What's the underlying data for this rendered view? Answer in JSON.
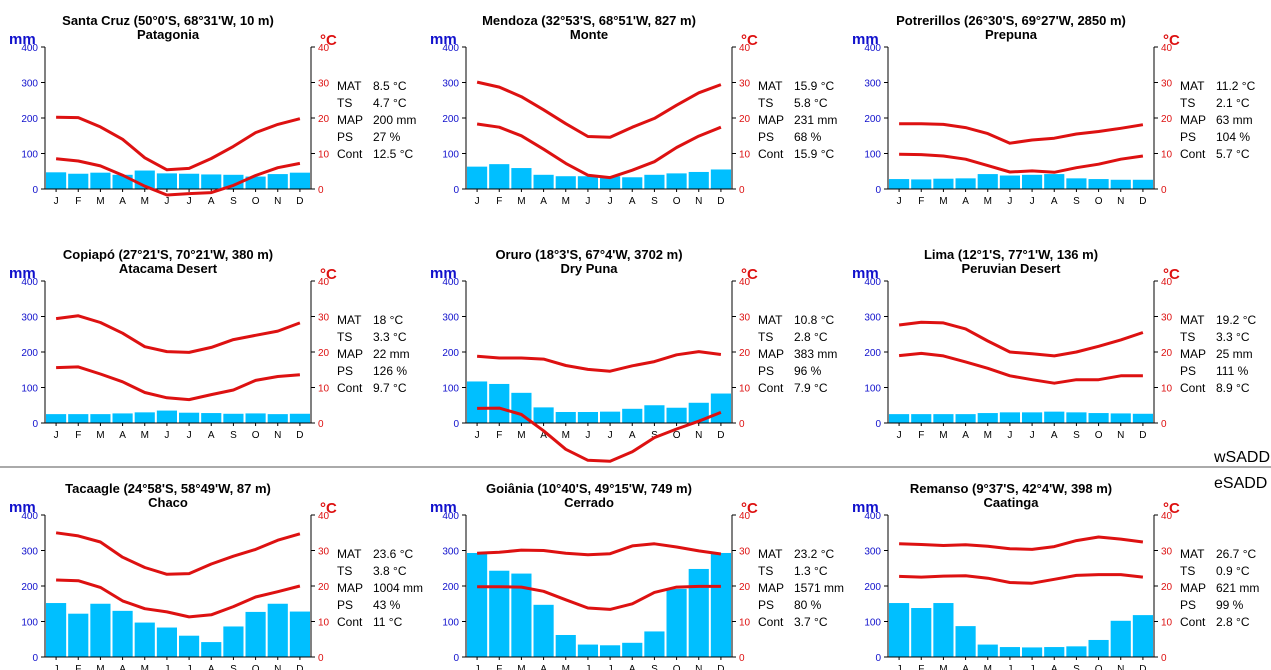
{
  "colors": {
    "bar": "#00bfff",
    "temp": "#dd1111",
    "mm": "#1010cc",
    "degc": "#dd1111",
    "axis": "#000000",
    "divider": "#555555"
  },
  "units": {
    "left": "mm",
    "right": "°C"
  },
  "stat_labels": [
    "MAT",
    "TS",
    "MAP",
    "PS",
    "Cont"
  ],
  "divider_labels": {
    "upper": "wSADD",
    "lower": "eSADD"
  },
  "chart_data": [
    {
      "type": "bar+line",
      "title": "Santa Cruz (50°0'S, 68°31'W, 10 m)",
      "subtitle": "Patagonia",
      "categories": [
        "J",
        "F",
        "M",
        "A",
        "M",
        "J",
        "J",
        "A",
        "S",
        "O",
        "N",
        "D"
      ],
      "y_left_ticks": [
        "0",
        "100",
        "200",
        "300",
        "400"
      ],
      "y_right_ticks": [
        "0",
        "10",
        "20",
        "30",
        "40"
      ],
      "ylim_left": [
        0,
        400
      ],
      "ylim_right": [
        0,
        40
      ],
      "precip_mm": [
        47,
        43,
        46,
        40,
        52,
        44,
        43,
        41,
        40,
        35,
        42,
        46
      ],
      "temp_max_c": [
        20.2,
        20.1,
        17.5,
        14,
        8.8,
        5.4,
        5.8,
        8.6,
        12,
        15.9,
        18.2,
        19.8
      ],
      "temp_min_c": [
        8.5,
        7.9,
        6.5,
        3.9,
        0.8,
        -1.7,
        -1.3,
        -1,
        1,
        3.8,
        6,
        7.2
      ],
      "stats": [
        "8.5 °C",
        "4.7 °C",
        "200 mm",
        "27 %",
        "12.5 °C"
      ]
    },
    {
      "type": "bar+line",
      "title": "Mendoza (32°53'S, 68°51'W, 827 m)",
      "subtitle": "Monte",
      "categories": [
        "J",
        "F",
        "M",
        "A",
        "M",
        "J",
        "J",
        "A",
        "S",
        "O",
        "N",
        "D"
      ],
      "y_left_ticks": [
        "0",
        "100",
        "200",
        "300",
        "400"
      ],
      "y_right_ticks": [
        "0",
        "10",
        "20",
        "30",
        "40"
      ],
      "ylim_left": [
        0,
        400
      ],
      "ylim_right": [
        0,
        40
      ],
      "precip_mm": [
        63,
        70,
        59,
        40,
        36,
        36,
        36,
        33,
        40,
        44,
        48,
        55
      ],
      "temp_max_c": [
        30.1,
        28.7,
        26,
        22.3,
        18.4,
        14.8,
        14.6,
        17.4,
        19.9,
        23.6,
        27.1,
        29.4
      ],
      "temp_min_c": [
        18.3,
        17.4,
        15,
        11.2,
        7.2,
        3.9,
        3.2,
        5.3,
        7.7,
        11.7,
        14.9,
        17.4
      ],
      "stats": [
        "15.9 °C",
        "5.8 °C",
        "231 mm",
        "68 %",
        "15.9 °C"
      ]
    },
    {
      "type": "bar+line",
      "title": "Potrerillos (26°30'S, 69°27'W, 2850 m)",
      "subtitle": "Prepuna",
      "categories": [
        "J",
        "F",
        "M",
        "A",
        "M",
        "J",
        "J",
        "A",
        "S",
        "O",
        "N",
        "D"
      ],
      "y_left_ticks": [
        "0",
        "100",
        "200",
        "300",
        "400"
      ],
      "y_right_ticks": [
        "0",
        "10",
        "20",
        "30",
        "40"
      ],
      "ylim_left": [
        0,
        400
      ],
      "ylim_right": [
        0,
        40
      ],
      "precip_mm": [
        28,
        27,
        29,
        30,
        42,
        38,
        40,
        42,
        30,
        28,
        26,
        26
      ],
      "temp_max_c": [
        18.4,
        18.4,
        18.2,
        17.3,
        15.6,
        12.9,
        13.8,
        14.3,
        15.5,
        16.2,
        17.1,
        18.1
      ],
      "temp_min_c": [
        9.8,
        9.7,
        9.3,
        8.4,
        6.6,
        4.8,
        5.1,
        4.7,
        6,
        7,
        8.4,
        9.3
      ],
      "stats": [
        "11.2 °C",
        "2.1 °C",
        "63 mm",
        "104 %",
        "5.7 °C"
      ]
    },
    {
      "type": "bar+line",
      "title": "Copiapó (27°21'S, 70°21'W, 380 m)",
      "subtitle": "Atacama Desert",
      "categories": [
        "J",
        "F",
        "M",
        "A",
        "M",
        "J",
        "J",
        "A",
        "S",
        "O",
        "N",
        "D"
      ],
      "y_left_ticks": [
        "0",
        "100",
        "200",
        "300",
        "400"
      ],
      "y_right_ticks": [
        "0",
        "10",
        "20",
        "30",
        "40"
      ],
      "ylim_left": [
        0,
        400
      ],
      "ylim_right": [
        0,
        40
      ],
      "precip_mm": [
        25,
        25,
        25,
        27,
        30,
        35,
        29,
        28,
        26,
        27,
        25,
        26
      ],
      "temp_max_c": [
        29.4,
        30.2,
        28.3,
        25.3,
        21.5,
        20.1,
        19.9,
        21.3,
        23.5,
        24.7,
        25.9,
        28.2
      ],
      "temp_min_c": [
        15.6,
        15.8,
        13.8,
        11.6,
        8.6,
        7.1,
        6.6,
        8,
        9.3,
        12,
        13.1,
        13.6
      ],
      "stats": [
        "18 °C",
        "3.3 °C",
        "22 mm",
        "126 %",
        "9.7 °C"
      ]
    },
    {
      "type": "bar+line",
      "title": "Oruro (18°3'S, 67°4'W, 3702 m)",
      "subtitle": "Dry Puna",
      "categories": [
        "J",
        "F",
        "M",
        "A",
        "M",
        "J",
        "J",
        "A",
        "S",
        "O",
        "N",
        "D"
      ],
      "y_left_ticks": [
        "0",
        "100",
        "200",
        "300",
        "400"
      ],
      "y_right_ticks": [
        "0",
        "10",
        "20",
        "30",
        "40"
      ],
      "ylim_left": [
        0,
        400
      ],
      "ylim_right": [
        0,
        40
      ],
      "precip_mm": [
        117,
        110,
        85,
        44,
        31,
        31,
        32,
        40,
        50,
        43,
        57,
        83
      ],
      "temp_max_c": [
        18.8,
        18.3,
        18.3,
        18,
        16.2,
        15.1,
        14.6,
        16.1,
        17.3,
        19.2,
        20.1,
        19.3
      ],
      "temp_min_c": [
        4.1,
        4.2,
        2.4,
        -2.2,
        -7.4,
        -10.5,
        -10.8,
        -8.1,
        -4.1,
        -1.7,
        0.5,
        3
      ],
      "stats": [
        "10.8 °C",
        "2.8 °C",
        "383 mm",
        "96 %",
        "7.9 °C"
      ]
    },
    {
      "type": "bar+line",
      "title": "Lima (12°1'S, 77°1'W, 136 m)",
      "subtitle": "Peruvian Desert",
      "categories": [
        "J",
        "F",
        "M",
        "A",
        "M",
        "J",
        "J",
        "A",
        "S",
        "O",
        "N",
        "D"
      ],
      "y_left_ticks": [
        "0",
        "100",
        "200",
        "300",
        "400"
      ],
      "y_right_ticks": [
        "0",
        "10",
        "20",
        "30",
        "40"
      ],
      "ylim_left": [
        0,
        400
      ],
      "ylim_right": [
        0,
        40
      ],
      "precip_mm": [
        25,
        25,
        25,
        25,
        28,
        30,
        30,
        32,
        30,
        28,
        27,
        26
      ],
      "temp_max_c": [
        27.6,
        28.4,
        28.2,
        26.5,
        23.1,
        20,
        19.5,
        18.9,
        20,
        21.6,
        23.4,
        25.5
      ],
      "temp_min_c": [
        19,
        19.6,
        18.9,
        17.2,
        15.4,
        13.3,
        12.2,
        11.2,
        12.2,
        12.2,
        13.3,
        13.3
      ],
      "stats": [
        "19.2 °C",
        "3.3 °C",
        "25 mm",
        "111 %",
        "8.9 °C"
      ]
    },
    {
      "type": "bar+line",
      "title": "Tacaagle (24°58'S, 58°49'W, 87 m)",
      "subtitle": "Chaco",
      "categories": [
        "J",
        "F",
        "M",
        "A",
        "M",
        "J",
        "J",
        "A",
        "S",
        "O",
        "N",
        "D"
      ],
      "y_left_ticks": [
        "0",
        "100",
        "200",
        "300",
        "400"
      ],
      "y_right_ticks": [
        "0",
        "10",
        "20",
        "30",
        "40"
      ],
      "ylim_left": [
        0,
        400
      ],
      "ylim_right": [
        0,
        40
      ],
      "precip_mm": [
        152,
        122,
        150,
        130,
        97,
        83,
        60,
        42,
        86,
        127,
        150,
        128
      ],
      "temp_max_c": [
        35,
        34.1,
        32.4,
        28.1,
        25.2,
        23.3,
        23.5,
        26.2,
        28.4,
        30.3,
        32.9,
        34.7
      ],
      "temp_min_c": [
        21.7,
        21.5,
        19.6,
        15.8,
        13.6,
        12.7,
        11.3,
        11.9,
        14.2,
        16.9,
        18.4,
        20
      ],
      "stats": [
        "23.6 °C",
        "3.8 °C",
        "1004 mm",
        "43 %",
        "11 °C"
      ]
    },
    {
      "type": "bar+line",
      "title": "Goiânia (10°40'S, 49°15'W, 749 m)",
      "subtitle": "Cerrado",
      "categories": [
        "J",
        "F",
        "M",
        "A",
        "M",
        "J",
        "J",
        "A",
        "S",
        "O",
        "N",
        "D"
      ],
      "y_left_ticks": [
        "0",
        "100",
        "200",
        "300",
        "400"
      ],
      "y_right_ticks": [
        "0",
        "10",
        "20",
        "30",
        "40"
      ],
      "ylim_left": [
        0,
        400
      ],
      "ylim_right": [
        0,
        40
      ],
      "precip_mm": [
        293,
        243,
        235,
        147,
        62,
        35,
        33,
        40,
        72,
        192,
        248,
        293
      ],
      "temp_max_c": [
        29.2,
        29.5,
        30.1,
        30,
        29.2,
        28.8,
        29.1,
        31.3,
        31.9,
        31,
        29.9,
        29
      ],
      "temp_min_c": [
        19.8,
        19.8,
        19.7,
        18.5,
        16.1,
        13.8,
        13.4,
        15,
        18.2,
        19.7,
        19.9,
        19.9
      ],
      "stats": [
        "23.2 °C",
        "1.3 °C",
        "1571 mm",
        "80 %",
        "3.7 °C"
      ]
    },
    {
      "type": "bar+line",
      "title": "Remanso (9°37'S, 42°4'W, 398 m)",
      "subtitle": "Caatinga",
      "categories": [
        "J",
        "F",
        "M",
        "A",
        "M",
        "J",
        "J",
        "A",
        "S",
        "O",
        "N",
        "D"
      ],
      "y_left_ticks": [
        "0",
        "100",
        "200",
        "300",
        "400"
      ],
      "y_right_ticks": [
        "0",
        "10",
        "20",
        "30",
        "40"
      ],
      "ylim_left": [
        0,
        400
      ],
      "ylim_right": [
        0,
        40
      ],
      "precip_mm": [
        152,
        138,
        152,
        87,
        35,
        28,
        27,
        28,
        30,
        48,
        102,
        118
      ],
      "temp_max_c": [
        31.9,
        31.7,
        31.4,
        31.6,
        31.2,
        30.5,
        30.3,
        31.1,
        32.8,
        33.8,
        33.2,
        32.4
      ],
      "temp_min_c": [
        22.7,
        22.5,
        22.8,
        22.9,
        22.2,
        21,
        20.8,
        21.9,
        23,
        23.2,
        23.2,
        22.5
      ],
      "stats": [
        "26.7 °C",
        "0.9 °C",
        "621 mm",
        "99 %",
        "2.8 °C"
      ]
    }
  ]
}
